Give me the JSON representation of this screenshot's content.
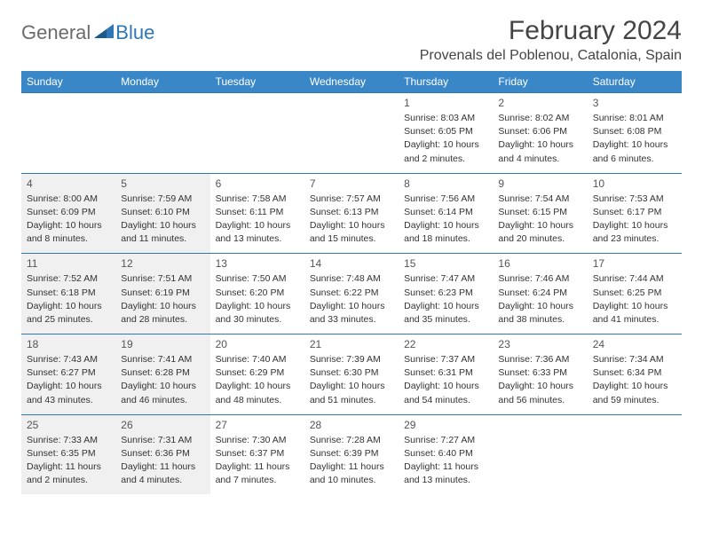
{
  "logo": {
    "general": "General",
    "blue": "Blue"
  },
  "title": "February 2024",
  "location": "Provenals del Poblenou, Catalonia, Spain",
  "colors": {
    "header_bg": "#3a87c8",
    "header_text": "#ffffff",
    "border": "#2f78b7",
    "shaded_bg": "#f0f0f0",
    "text": "#333333",
    "logo_gray": "#6b6b6b",
    "logo_blue": "#2f78b7"
  },
  "weekdays": [
    "Sunday",
    "Monday",
    "Tuesday",
    "Wednesday",
    "Thursday",
    "Friday",
    "Saturday"
  ],
  "weeks": [
    [
      {
        "empty": true
      },
      {
        "empty": true
      },
      {
        "empty": true
      },
      {
        "empty": true
      },
      {
        "day": "1",
        "sunrise": "Sunrise: 8:03 AM",
        "sunset": "Sunset: 6:05 PM",
        "daylight1": "Daylight: 10 hours",
        "daylight2": "and 2 minutes.",
        "shaded": false
      },
      {
        "day": "2",
        "sunrise": "Sunrise: 8:02 AM",
        "sunset": "Sunset: 6:06 PM",
        "daylight1": "Daylight: 10 hours",
        "daylight2": "and 4 minutes.",
        "shaded": false
      },
      {
        "day": "3",
        "sunrise": "Sunrise: 8:01 AM",
        "sunset": "Sunset: 6:08 PM",
        "daylight1": "Daylight: 10 hours",
        "daylight2": "and 6 minutes.",
        "shaded": false
      }
    ],
    [
      {
        "day": "4",
        "sunrise": "Sunrise: 8:00 AM",
        "sunset": "Sunset: 6:09 PM",
        "daylight1": "Daylight: 10 hours",
        "daylight2": "and 8 minutes.",
        "shaded": true
      },
      {
        "day": "5",
        "sunrise": "Sunrise: 7:59 AM",
        "sunset": "Sunset: 6:10 PM",
        "daylight1": "Daylight: 10 hours",
        "daylight2": "and 11 minutes.",
        "shaded": true
      },
      {
        "day": "6",
        "sunrise": "Sunrise: 7:58 AM",
        "sunset": "Sunset: 6:11 PM",
        "daylight1": "Daylight: 10 hours",
        "daylight2": "and 13 minutes.",
        "shaded": false
      },
      {
        "day": "7",
        "sunrise": "Sunrise: 7:57 AM",
        "sunset": "Sunset: 6:13 PM",
        "daylight1": "Daylight: 10 hours",
        "daylight2": "and 15 minutes.",
        "shaded": false
      },
      {
        "day": "8",
        "sunrise": "Sunrise: 7:56 AM",
        "sunset": "Sunset: 6:14 PM",
        "daylight1": "Daylight: 10 hours",
        "daylight2": "and 18 minutes.",
        "shaded": false
      },
      {
        "day": "9",
        "sunrise": "Sunrise: 7:54 AM",
        "sunset": "Sunset: 6:15 PM",
        "daylight1": "Daylight: 10 hours",
        "daylight2": "and 20 minutes.",
        "shaded": false
      },
      {
        "day": "10",
        "sunrise": "Sunrise: 7:53 AM",
        "sunset": "Sunset: 6:17 PM",
        "daylight1": "Daylight: 10 hours",
        "daylight2": "and 23 minutes.",
        "shaded": false
      }
    ],
    [
      {
        "day": "11",
        "sunrise": "Sunrise: 7:52 AM",
        "sunset": "Sunset: 6:18 PM",
        "daylight1": "Daylight: 10 hours",
        "daylight2": "and 25 minutes.",
        "shaded": true
      },
      {
        "day": "12",
        "sunrise": "Sunrise: 7:51 AM",
        "sunset": "Sunset: 6:19 PM",
        "daylight1": "Daylight: 10 hours",
        "daylight2": "and 28 minutes.",
        "shaded": true
      },
      {
        "day": "13",
        "sunrise": "Sunrise: 7:50 AM",
        "sunset": "Sunset: 6:20 PM",
        "daylight1": "Daylight: 10 hours",
        "daylight2": "and 30 minutes.",
        "shaded": false
      },
      {
        "day": "14",
        "sunrise": "Sunrise: 7:48 AM",
        "sunset": "Sunset: 6:22 PM",
        "daylight1": "Daylight: 10 hours",
        "daylight2": "and 33 minutes.",
        "shaded": false
      },
      {
        "day": "15",
        "sunrise": "Sunrise: 7:47 AM",
        "sunset": "Sunset: 6:23 PM",
        "daylight1": "Daylight: 10 hours",
        "daylight2": "and 35 minutes.",
        "shaded": false
      },
      {
        "day": "16",
        "sunrise": "Sunrise: 7:46 AM",
        "sunset": "Sunset: 6:24 PM",
        "daylight1": "Daylight: 10 hours",
        "daylight2": "and 38 minutes.",
        "shaded": false
      },
      {
        "day": "17",
        "sunrise": "Sunrise: 7:44 AM",
        "sunset": "Sunset: 6:25 PM",
        "daylight1": "Daylight: 10 hours",
        "daylight2": "and 41 minutes.",
        "shaded": false
      }
    ],
    [
      {
        "day": "18",
        "sunrise": "Sunrise: 7:43 AM",
        "sunset": "Sunset: 6:27 PM",
        "daylight1": "Daylight: 10 hours",
        "daylight2": "and 43 minutes.",
        "shaded": true
      },
      {
        "day": "19",
        "sunrise": "Sunrise: 7:41 AM",
        "sunset": "Sunset: 6:28 PM",
        "daylight1": "Daylight: 10 hours",
        "daylight2": "and 46 minutes.",
        "shaded": true
      },
      {
        "day": "20",
        "sunrise": "Sunrise: 7:40 AM",
        "sunset": "Sunset: 6:29 PM",
        "daylight1": "Daylight: 10 hours",
        "daylight2": "and 48 minutes.",
        "shaded": false
      },
      {
        "day": "21",
        "sunrise": "Sunrise: 7:39 AM",
        "sunset": "Sunset: 6:30 PM",
        "daylight1": "Daylight: 10 hours",
        "daylight2": "and 51 minutes.",
        "shaded": false
      },
      {
        "day": "22",
        "sunrise": "Sunrise: 7:37 AM",
        "sunset": "Sunset: 6:31 PM",
        "daylight1": "Daylight: 10 hours",
        "daylight2": "and 54 minutes.",
        "shaded": false
      },
      {
        "day": "23",
        "sunrise": "Sunrise: 7:36 AM",
        "sunset": "Sunset: 6:33 PM",
        "daylight1": "Daylight: 10 hours",
        "daylight2": "and 56 minutes.",
        "shaded": false
      },
      {
        "day": "24",
        "sunrise": "Sunrise: 7:34 AM",
        "sunset": "Sunset: 6:34 PM",
        "daylight1": "Daylight: 10 hours",
        "daylight2": "and 59 minutes.",
        "shaded": false
      }
    ],
    [
      {
        "day": "25",
        "sunrise": "Sunrise: 7:33 AM",
        "sunset": "Sunset: 6:35 PM",
        "daylight1": "Daylight: 11 hours",
        "daylight2": "and 2 minutes.",
        "shaded": true
      },
      {
        "day": "26",
        "sunrise": "Sunrise: 7:31 AM",
        "sunset": "Sunset: 6:36 PM",
        "daylight1": "Daylight: 11 hours",
        "daylight2": "and 4 minutes.",
        "shaded": true
      },
      {
        "day": "27",
        "sunrise": "Sunrise: 7:30 AM",
        "sunset": "Sunset: 6:37 PM",
        "daylight1": "Daylight: 11 hours",
        "daylight2": "and 7 minutes.",
        "shaded": false
      },
      {
        "day": "28",
        "sunrise": "Sunrise: 7:28 AM",
        "sunset": "Sunset: 6:39 PM",
        "daylight1": "Daylight: 11 hours",
        "daylight2": "and 10 minutes.",
        "shaded": false
      },
      {
        "day": "29",
        "sunrise": "Sunrise: 7:27 AM",
        "sunset": "Sunset: 6:40 PM",
        "daylight1": "Daylight: 11 hours",
        "daylight2": "and 13 minutes.",
        "shaded": false
      },
      {
        "empty": true
      },
      {
        "empty": true
      }
    ]
  ]
}
